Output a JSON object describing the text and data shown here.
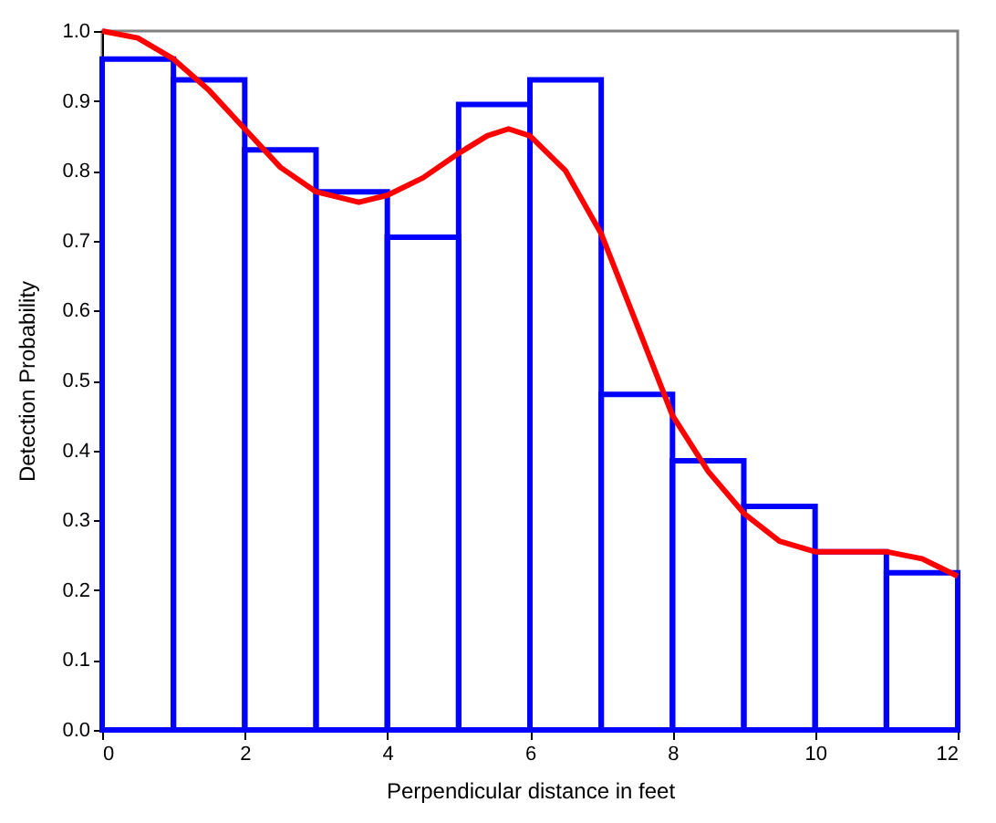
{
  "chart_data": {
    "type": "histogram",
    "xlabel": "Perpendicular distance in feet",
    "ylabel": "Detection Probability",
    "bins": [
      0,
      1,
      2,
      3,
      4,
      5,
      6,
      7,
      8,
      9,
      10,
      11,
      12
    ],
    "series": [
      {
        "color": "#0000ff",
        "values": [
          0.96,
          0.93,
          0.83,
          0.77,
          0.705,
          0.895,
          0.93,
          0.48,
          0.385,
          0.32,
          0.255,
          0.225
        ]
      },
      {
        "type": "line",
        "color": "#ff0000",
        "x": [
          0,
          0.5,
          1,
          1.5,
          2,
          2.5,
          3,
          3.6,
          4,
          4.5,
          5,
          5.4,
          5.7,
          6,
          6.5,
          7,
          7.5,
          8,
          8.5,
          9,
          9.5,
          10,
          10.5,
          11,
          11.5,
          12
        ],
        "values": [
          1.0,
          0.99,
          0.96,
          0.915,
          0.86,
          0.805,
          0.77,
          0.755,
          0.765,
          0.79,
          0.825,
          0.85,
          0.86,
          0.85,
          0.8,
          0.71,
          0.58,
          0.45,
          0.37,
          0.31,
          0.27,
          0.255,
          0.255,
          0.255,
          0.245,
          0.22
        ]
      }
    ],
    "xlim": [
      0,
      12
    ],
    "xticks": [
      0,
      2,
      4,
      6,
      8,
      10,
      12
    ],
    "ylim": [
      0,
      1.0
    ],
    "yticks": [
      {
        "value": 0,
        "label": "0.0"
      },
      0.1,
      0.2,
      0.3,
      0.4,
      0.5,
      0.6,
      0.7,
      0.8,
      0.9,
      {
        "value": 1,
        "label": "1.0"
      }
    ],
    "grid": false,
    "marker": "none",
    "line_style": "solid"
  }
}
